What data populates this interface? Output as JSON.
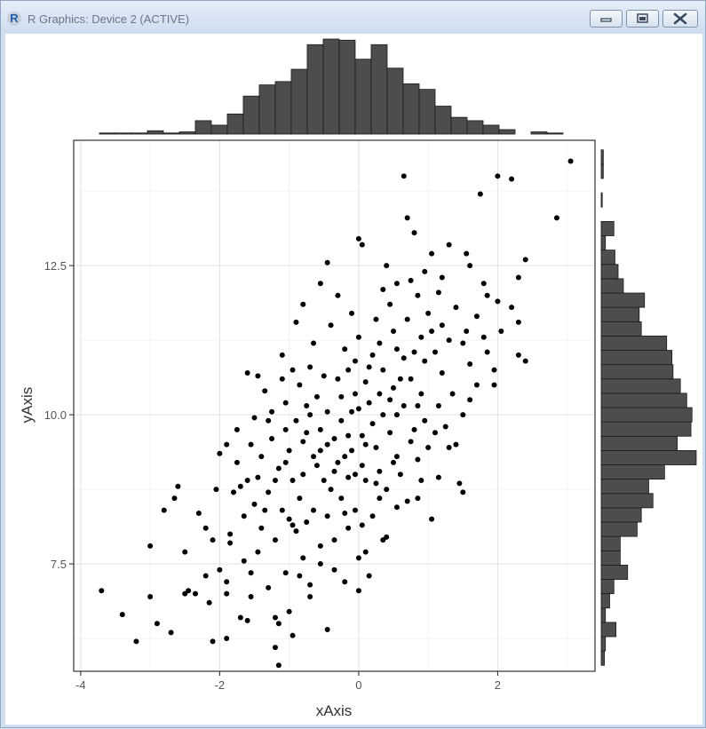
{
  "window": {
    "title": "R Graphics: Device 2 (ACTIVE)",
    "icon": "r-logo-icon",
    "buttons": [
      "minimize-icon",
      "maximize-icon",
      "close-icon"
    ]
  },
  "chart_data": {
    "type": "scatter",
    "xlabel": "xAxis",
    "ylabel": "yAxis",
    "xlim": [
      -4.1,
      3.4
    ],
    "ylim": [
      5.7,
      14.6
    ],
    "xticks": [
      -4,
      -2,
      0,
      2
    ],
    "xtick_labels": [
      "-4",
      "-2",
      "0",
      "2"
    ],
    "yticks": [
      7.5,
      10.0,
      12.5
    ],
    "ytick_labels": [
      "7.5",
      "10.0",
      "12.5"
    ],
    "grid": true,
    "point_color": "#000000",
    "bar_color": "#4d4d4d",
    "points": [
      [
        3.05,
        14.25
      ],
      [
        2.85,
        13.3
      ],
      [
        2.2,
        13.95
      ],
      [
        2.0,
        14.0
      ],
      [
        1.75,
        13.7
      ],
      [
        0.65,
        14.0
      ],
      [
        0.8,
        13.05
      ],
      [
        0.7,
        13.3
      ],
      [
        0.0,
        12.95
      ],
      [
        0.05,
        12.85
      ],
      [
        -0.55,
        12.2
      ],
      [
        -0.45,
        12.55
      ],
      [
        0.4,
        12.5
      ],
      [
        0.55,
        12.2
      ],
      [
        1.2,
        12.3
      ],
      [
        1.55,
        12.7
      ],
      [
        2.4,
        12.6
      ],
      [
        2.3,
        12.3
      ],
      [
        2.2,
        11.8
      ],
      [
        2.0,
        11.9
      ],
      [
        1.8,
        12.2
      ],
      [
        2.3,
        11.0
      ],
      [
        2.4,
        10.9
      ],
      [
        2.3,
        11.55
      ],
      [
        1.95,
        10.75
      ],
      [
        1.95,
        10.5
      ],
      [
        1.7,
        10.5
      ],
      [
        1.6,
        10.85
      ],
      [
        1.5,
        11.2
      ],
      [
        1.2,
        11.5
      ],
      [
        1.0,
        11.7
      ],
      [
        0.85,
        12.0
      ],
      [
        -1.6,
        10.7
      ],
      [
        -1.45,
        10.65
      ],
      [
        -1.1,
        10.6
      ],
      [
        -1.5,
        9.95
      ],
      [
        -1.3,
        9.9
      ],
      [
        -1.9,
        9.5
      ],
      [
        -2.0,
        9.35
      ],
      [
        -1.75,
        9.2
      ],
      [
        -1.6,
        8.9
      ],
      [
        -1.8,
        8.7
      ],
      [
        -2.6,
        8.8
      ],
      [
        -2.65,
        8.6
      ],
      [
        -2.8,
        8.4
      ],
      [
        -2.3,
        8.35
      ],
      [
        -2.1,
        7.9
      ],
      [
        -2.5,
        7.7
      ],
      [
        -3.0,
        7.8
      ],
      [
        -2.2,
        7.3
      ],
      [
        -2.0,
        7.4
      ],
      [
        -1.9,
        7.2
      ],
      [
        -3.7,
        7.05
      ],
      [
        -3.0,
        6.95
      ],
      [
        -2.5,
        7.0
      ],
      [
        -2.35,
        7.0
      ],
      [
        -2.15,
        6.85
      ],
      [
        -1.9,
        7.0
      ],
      [
        -3.4,
        6.65
      ],
      [
        -2.9,
        6.5
      ],
      [
        -3.2,
        6.2
      ],
      [
        -2.7,
        6.35
      ],
      [
        -2.1,
        6.2
      ],
      [
        -1.9,
        6.25
      ],
      [
        -1.7,
        6.6
      ],
      [
        -1.6,
        6.55
      ],
      [
        -1.2,
        6.6
      ],
      [
        -1.15,
        6.5
      ],
      [
        -1.2,
        6.1
      ],
      [
        -1.15,
        5.8
      ],
      [
        -0.45,
        6.4
      ],
      [
        -1.0,
        6.7
      ],
      [
        -0.7,
        6.95
      ],
      [
        -0.55,
        7.5
      ],
      [
        -0.2,
        7.2
      ],
      [
        0.0,
        7.05
      ],
      [
        0.15,
        7.3
      ],
      [
        0.1,
        7.7
      ],
      [
        0.4,
        7.95
      ],
      [
        0.2,
        8.3
      ],
      [
        0.3,
        8.6
      ],
      [
        0.1,
        8.9
      ],
      [
        -0.05,
        8.4
      ],
      [
        0.7,
        8.55
      ],
      [
        0.9,
        8.9
      ],
      [
        1.05,
        8.25
      ],
      [
        1.5,
        8.7
      ],
      [
        1.45,
        8.85
      ],
      [
        1.3,
        9.45
      ],
      [
        1.1,
        9.7
      ],
      [
        1.4,
        9.5
      ],
      [
        1.5,
        10.0
      ],
      [
        1.35,
        10.35
      ],
      [
        1.2,
        10.7
      ],
      [
        0.95,
        10.9
      ],
      [
        0.65,
        10.95
      ],
      [
        0.5,
        11.4
      ],
      [
        0.3,
        11.2
      ],
      [
        0.15,
        10.8
      ],
      [
        -0.05,
        10.9
      ],
      [
        -0.3,
        10.6
      ],
      [
        -0.6,
        10.3
      ],
      [
        -0.85,
        10.5
      ],
      [
        -1.05,
        10.2
      ],
      [
        -0.9,
        9.9
      ],
      [
        -0.75,
        9.7
      ],
      [
        -1.0,
        9.4
      ],
      [
        -1.25,
        9.6
      ],
      [
        -1.4,
        9.3
      ],
      [
        -1.15,
        9.1
      ],
      [
        -0.95,
        8.9
      ],
      [
        -1.3,
        8.7
      ],
      [
        -1.5,
        8.5
      ],
      [
        -1.65,
        8.3
      ],
      [
        -1.4,
        8.1
      ],
      [
        -1.1,
        8.4
      ],
      [
        -0.85,
        8.6
      ],
      [
        -0.65,
        8.4
      ],
      [
        -0.95,
        8.15
      ],
      [
        -1.2,
        7.9
      ],
      [
        -1.45,
        7.7
      ],
      [
        -1.65,
        7.55
      ],
      [
        -1.85,
        7.85
      ],
      [
        -1.55,
        7.35
      ],
      [
        -1.3,
        7.1
      ],
      [
        -1.05,
        7.35
      ],
      [
        -0.8,
        7.6
      ],
      [
        -0.7,
        7.15
      ],
      [
        -0.35,
        7.9
      ],
      [
        -0.15,
        8.1
      ],
      [
        -0.45,
        8.3
      ],
      [
        -0.25,
        8.6
      ],
      [
        -0.5,
        8.9
      ],
      [
        -0.3,
        9.2
      ],
      [
        -0.55,
        9.4
      ],
      [
        -0.35,
        9.6
      ],
      [
        -0.1,
        9.4
      ],
      [
        0.05,
        9.65
      ],
      [
        0.25,
        9.45
      ],
      [
        0.45,
        9.7
      ],
      [
        0.35,
        10.0
      ],
      [
        0.15,
        10.2
      ],
      [
        -0.1,
        10.05
      ],
      [
        -0.25,
        10.3
      ],
      [
        -0.45,
        10.05
      ],
      [
        -0.7,
        10.0
      ],
      [
        -0.55,
        9.75
      ],
      [
        -0.8,
        9.55
      ],
      [
        -0.6,
        9.15
      ],
      [
        -0.8,
        9.0
      ],
      [
        -0.4,
        8.75
      ],
      [
        -0.15,
        8.95
      ],
      [
        0.05,
        9.15
      ],
      [
        0.3,
        9.05
      ],
      [
        0.55,
        9.3
      ],
      [
        0.75,
        9.55
      ],
      [
        0.85,
        9.25
      ],
      [
        0.6,
        9.0
      ],
      [
        0.4,
        8.75
      ],
      [
        0.65,
        10.15
      ],
      [
        0.9,
        10.35
      ],
      [
        0.75,
        10.6
      ],
      [
        0.5,
        10.45
      ],
      [
        0.35,
        10.75
      ],
      [
        0.1,
        10.55
      ],
      [
        0.0,
        11.3
      ],
      [
        0.25,
        11.6
      ],
      [
        0.45,
        11.85
      ],
      [
        0.7,
        11.6
      ],
      [
        0.9,
        11.3
      ],
      [
        1.1,
        11.05
      ],
      [
        1.3,
        11.25
      ],
      [
        1.55,
        11.4
      ],
      [
        1.8,
        11.3
      ],
      [
        1.7,
        11.65
      ],
      [
        1.4,
        11.8
      ],
      [
        1.15,
        12.05
      ],
      [
        0.95,
        12.4
      ],
      [
        1.3,
        12.85
      ],
      [
        1.6,
        12.5
      ],
      [
        1.85,
        12.0
      ],
      [
        2.05,
        11.4
      ],
      [
        1.85,
        11.05
      ],
      [
        1.6,
        10.25
      ],
      [
        -0.2,
        11.1
      ],
      [
        -0.4,
        11.5
      ],
      [
        -0.65,
        11.2
      ],
      [
        -0.9,
        11.55
      ],
      [
        -0.7,
        10.8
      ],
      [
        -0.95,
        10.75
      ],
      [
        -1.25,
        10.05
      ],
      [
        -1.05,
        9.75
      ],
      [
        -0.25,
        9.9
      ],
      [
        0.2,
        9.85
      ],
      [
        0.55,
        10.0
      ],
      [
        0.95,
        9.9
      ],
      [
        1.15,
        10.15
      ],
      [
        -0.05,
        10.35
      ],
      [
        0.3,
        10.35
      ],
      [
        -0.15,
        9.65
      ],
      [
        -0.45,
        9.5
      ],
      [
        -0.2,
        9.3
      ],
      [
        0.1,
        9.5
      ],
      [
        -0.05,
        9.0
      ],
      [
        0.25,
        8.85
      ],
      [
        0.5,
        9.2
      ],
      [
        -0.65,
        9.3
      ],
      [
        -0.35,
        9.05
      ],
      [
        -1.75,
        9.75
      ],
      [
        -1.55,
        9.5
      ],
      [
        -2.05,
        8.75
      ],
      [
        -2.2,
        8.1
      ],
      [
        -1.85,
        8.0
      ],
      [
        -2.45,
        7.05
      ],
      [
        -1.55,
        6.95
      ],
      [
        -0.95,
        6.3
      ],
      [
        -0.85,
        7.3
      ],
      [
        -0.35,
        7.4
      ],
      [
        0.0,
        7.6
      ],
      [
        0.35,
        7.9
      ],
      [
        -0.9,
        8.05
      ],
      [
        -0.55,
        7.8
      ],
      [
        -0.2,
        8.35
      ],
      [
        0.05,
        8.15
      ],
      [
        0.55,
        8.45
      ],
      [
        0.85,
        8.6
      ],
      [
        1.15,
        8.95
      ],
      [
        0.8,
        9.75
      ],
      [
        1.0,
        9.45
      ],
      [
        1.25,
        9.8
      ],
      [
        0.6,
        10.6
      ],
      [
        0.8,
        11.05
      ],
      [
        1.05,
        11.4
      ],
      [
        0.55,
        11.1
      ],
      [
        0.2,
        11.0
      ],
      [
        0.35,
        12.1
      ],
      [
        0.75,
        12.25
      ],
      [
        1.05,
        12.7
      ],
      [
        -0.1,
        11.7
      ],
      [
        -0.3,
        12.0
      ],
      [
        -0.8,
        11.85
      ],
      [
        -1.1,
        11.0
      ],
      [
        -1.35,
        10.4
      ],
      [
        -0.5,
        10.65
      ],
      [
        -0.15,
        10.75
      ],
      [
        0.0,
        10.1
      ],
      [
        0.45,
        10.25
      ],
      [
        0.85,
        10.15
      ],
      [
        -0.75,
        10.15
      ],
      [
        -1.05,
        9.2
      ],
      [
        -1.2,
        8.9
      ],
      [
        -1.45,
        8.95
      ],
      [
        -1.7,
        8.8
      ],
      [
        -1.35,
        8.4
      ],
      [
        -1.0,
        8.25
      ],
      [
        -0.75,
        8.2
      ]
    ],
    "xhist": {
      "edges": [
        -3.73,
        -3.5,
        -3.27,
        -3.04,
        -2.81,
        -2.58,
        -2.35,
        -2.12,
        -1.89,
        -1.66,
        -1.43,
        -1.2,
        -0.97,
        -0.74,
        -0.51,
        -0.28,
        -0.05,
        0.18,
        0.41,
        0.64,
        0.87,
        1.1,
        1.33,
        1.56,
        1.79,
        2.02,
        2.25,
        2.48,
        2.71,
        2.94,
        3.17
      ],
      "counts": [
        1,
        1,
        1,
        3,
        1,
        2,
        12,
        8,
        18,
        34,
        44,
        47,
        58,
        80,
        85,
        84,
        67,
        80,
        59,
        45,
        40,
        25,
        15,
        12,
        8,
        4,
        0,
        2,
        1,
        0
      ]
    },
    "yhist": {
      "edges": [
        5.8,
        6.04,
        6.28,
        6.52,
        6.76,
        7.0,
        7.24,
        7.48,
        7.72,
        7.96,
        8.2,
        8.44,
        8.68,
        8.92,
        9.16,
        9.4,
        9.64,
        9.88,
        10.12,
        10.36,
        10.6,
        10.84,
        11.08,
        11.32,
        11.56,
        11.8,
        12.04,
        12.28,
        12.52,
        12.76,
        13.0,
        13.24,
        13.48,
        13.72,
        13.96,
        14.2,
        14.44
      ],
      "counts": [
        3,
        4,
        14,
        4,
        8,
        12,
        25,
        18,
        18,
        34,
        38,
        49,
        45,
        60,
        90,
        72,
        85,
        86,
        81,
        75,
        68,
        67,
        62,
        38,
        36,
        41,
        21,
        16,
        13,
        4,
        12,
        0,
        1,
        0,
        2,
        2
      ]
    }
  }
}
